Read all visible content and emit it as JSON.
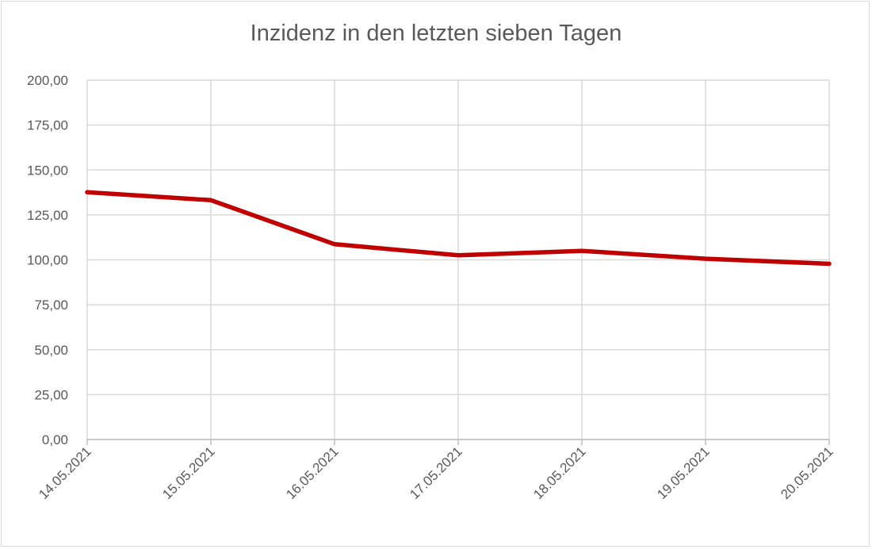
{
  "chart_data": {
    "type": "line",
    "title": "Inzidenz in den letzten sieben Tagen",
    "categories": [
      "14.05.2021",
      "15.05.2021",
      "16.05.2021",
      "17.05.2021",
      "18.05.2021",
      "19.05.2021",
      "20.05.2021"
    ],
    "series": [
      {
        "values": [
          137.6,
          133.2,
          108.7,
          102.5,
          105.0,
          100.6,
          97.8
        ],
        "color": "#c00000"
      }
    ],
    "ylim": [
      0,
      200
    ],
    "yticks": [
      "0,00",
      "25,00",
      "50,00",
      "75,00",
      "100,00",
      "125,00",
      "150,00",
      "175,00",
      "200,00"
    ],
    "grid": true,
    "legend": "none"
  }
}
